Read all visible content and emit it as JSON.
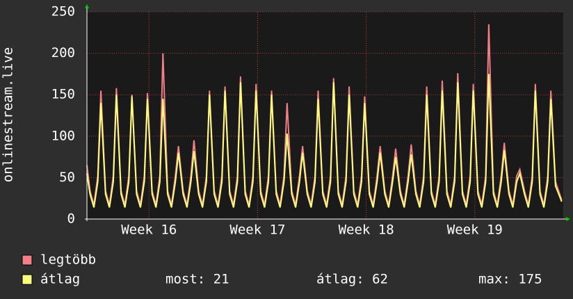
{
  "chart_data": {
    "type": "line",
    "ylabel": "onlinestream.live",
    "xlim": [
      0,
      30.7
    ],
    "xticks": [
      {
        "value": 4,
        "label": "Week 16"
      },
      {
        "value": 11,
        "label": "Week 17"
      },
      {
        "value": 18,
        "label": "Week 18"
      },
      {
        "value": 25,
        "label": "Week 19"
      }
    ],
    "ylim": [
      0,
      250
    ],
    "yticks": [
      0,
      50,
      100,
      150,
      200,
      250
    ],
    "grid": true,
    "x": [
      0,
      0.2,
      0.45,
      0.7,
      0.9,
      1.2,
      1.45,
      1.7,
      1.9,
      2.2,
      2.45,
      2.7,
      2.9,
      3.2,
      3.45,
      3.7,
      3.9,
      4.2,
      4.45,
      4.7,
      4.9,
      5.2,
      5.45,
      5.7,
      5.9,
      6.2,
      6.45,
      6.7,
      6.9,
      7.2,
      7.45,
      7.7,
      7.9,
      8.2,
      8.45,
      8.7,
      8.9,
      9.2,
      9.45,
      9.7,
      9.9,
      10.2,
      10.45,
      10.7,
      10.9,
      11.2,
      11.45,
      11.7,
      11.9,
      12.2,
      12.45,
      12.7,
      12.9,
      13.2,
      13.45,
      13.7,
      13.9,
      14.2,
      14.45,
      14.7,
      14.9,
      15.2,
      15.45,
      15.7,
      15.9,
      16.2,
      16.45,
      16.7,
      16.9,
      17.2,
      17.45,
      17.7,
      17.9,
      18.2,
      18.45,
      18.7,
      18.9,
      19.2,
      19.45,
      19.7,
      19.9,
      20.2,
      20.45,
      20.7,
      20.9,
      21.2,
      21.45,
      21.7,
      21.9,
      22.2,
      22.45,
      22.7,
      22.9,
      23.2,
      23.45,
      23.7,
      23.9,
      24.2,
      24.45,
      24.7,
      24.9,
      25.2,
      25.45,
      25.7,
      25.9,
      26.2,
      26.45,
      26.7,
      26.9,
      27.2,
      27.45,
      27.7,
      27.9,
      28.2,
      28.45,
      28.7,
      28.9,
      29.2,
      29.45,
      29.7,
      29.9,
      30.2,
      30.6
    ],
    "series": [
      {
        "name": "legtöbb",
        "color": "#f07f86",
        "values": [
          65,
          34,
          17,
          52,
          155,
          34,
          17,
          52,
          158,
          34,
          17,
          52,
          150,
          34,
          17,
          52,
          152,
          34,
          17,
          52,
          200,
          34,
          17,
          52,
          88,
          34,
          17,
          52,
          95,
          34,
          17,
          52,
          155,
          34,
          17,
          52,
          160,
          34,
          17,
          52,
          172,
          34,
          17,
          52,
          163,
          34,
          17,
          52,
          155,
          34,
          17,
          52,
          140,
          34,
          17,
          52,
          88,
          34,
          17,
          52,
          155,
          34,
          17,
          52,
          170,
          34,
          17,
          52,
          160,
          34,
          17,
          52,
          148,
          34,
          17,
          52,
          88,
          34,
          17,
          52,
          85,
          34,
          17,
          52,
          90,
          34,
          17,
          52,
          160,
          34,
          17,
          52,
          167,
          34,
          17,
          52,
          176,
          34,
          17,
          52,
          163,
          34,
          17,
          52,
          235,
          34,
          17,
          52,
          92,
          34,
          17,
          52,
          60,
          34,
          17,
          52,
          163,
          34,
          17,
          52,
          155,
          45,
          23
        ]
      },
      {
        "name": "átlag",
        "color": "#ffff80",
        "values": [
          55,
          30,
          14,
          45,
          140,
          30,
          14,
          45,
          150,
          30,
          14,
          45,
          148,
          30,
          14,
          45,
          145,
          30,
          14,
          45,
          145,
          30,
          14,
          45,
          80,
          30,
          14,
          45,
          82,
          30,
          14,
          45,
          150,
          30,
          14,
          45,
          155,
          30,
          14,
          45,
          165,
          30,
          14,
          45,
          155,
          30,
          14,
          45,
          150,
          30,
          14,
          45,
          103,
          30,
          14,
          45,
          80,
          30,
          14,
          45,
          145,
          30,
          14,
          45,
          165,
          30,
          14,
          45,
          150,
          30,
          14,
          45,
          140,
          30,
          14,
          45,
          80,
          30,
          14,
          45,
          75,
          30,
          14,
          45,
          78,
          30,
          14,
          45,
          150,
          30,
          14,
          45,
          155,
          30,
          14,
          45,
          165,
          30,
          14,
          45,
          155,
          30,
          14,
          45,
          175,
          30,
          14,
          45,
          83,
          30,
          14,
          45,
          55,
          30,
          14,
          45,
          155,
          30,
          14,
          45,
          145,
          40,
          21
        ]
      }
    ],
    "stats": [
      "most: 21",
      "átlag: 62",
      "max: 175"
    ]
  }
}
